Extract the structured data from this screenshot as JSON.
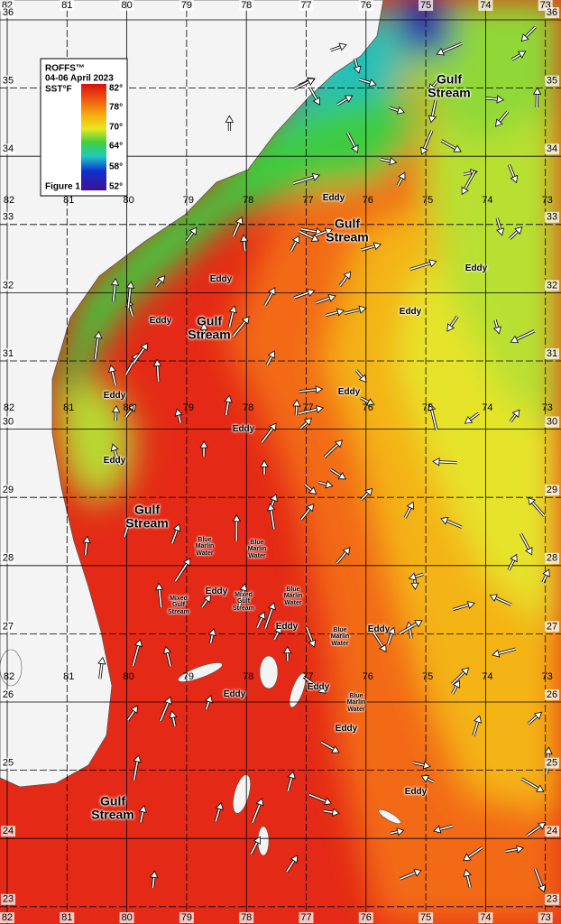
{
  "legend": {
    "brand": "ROFFS™",
    "date": "04-06 April 2023",
    "unit": "SST°F",
    "scale": [
      "82°",
      "78°",
      "70°",
      "64°",
      "58°",
      "52°"
    ],
    "figure": "Figure 1"
  },
  "grid": {
    "top": [
      "82",
      "81",
      "80",
      "79",
      "78",
      "77",
      "76",
      "75",
      "74",
      "73"
    ],
    "bottom": [
      "82",
      "81",
      "80",
      "79",
      "78",
      "77",
      "76",
      "75",
      "74",
      "73"
    ],
    "left": [
      "36",
      "35",
      "34",
      "33",
      "32",
      "31",
      "30",
      "29",
      "28",
      "27",
      "26",
      "25",
      "24",
      "23"
    ],
    "right": [
      "36",
      "35",
      "34",
      "33",
      "32",
      "31",
      "30",
      "29",
      "28",
      "27",
      "26",
      "25",
      "24",
      "23"
    ],
    "inner_rows": [
      [
        "82",
        "81",
        "80",
        "79",
        "78",
        "77",
        "76",
        "75",
        "74",
        "73"
      ],
      [
        "82",
        "81",
        "80",
        "79",
        "78",
        "77",
        "76",
        "75",
        "74",
        "73"
      ],
      [
        "82",
        "81",
        "80",
        "79",
        "78",
        "77",
        "76",
        "75",
        "74",
        "73"
      ]
    ]
  },
  "labels": [
    "Gulf Stream",
    "Gulf Stream",
    "Gulf Stream",
    "Gulf Stream",
    "Gulf Stream",
    "Eddy",
    "Eddy",
    "Eddy",
    "Eddy",
    "Eddy",
    "Eddy",
    "Eddy",
    "Eddy",
    "Eddy",
    "Eddy",
    "Eddy",
    "Eddy",
    "Eddy",
    "Eddy",
    "Eddy",
    "Eddy",
    "Blue Marlin Water",
    "Blue Marlin Water",
    "Blue Marlin Water",
    "Blue Marlin Water",
    "Blue Marlin Water",
    "Mixed Gulf Stream",
    "Mixed Gulf Stream"
  ]
}
